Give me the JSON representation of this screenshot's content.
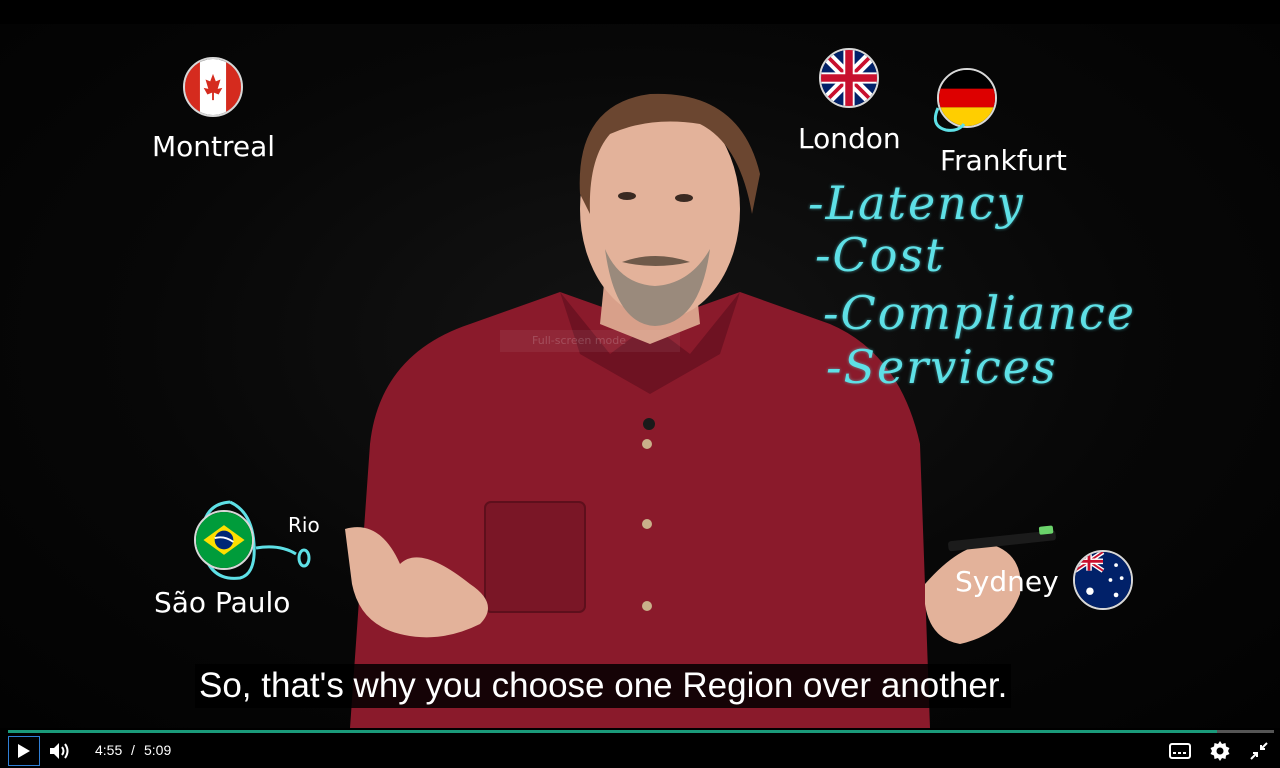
{
  "cities": {
    "montreal": "Montreal",
    "london": "London",
    "frankfurt": "Frankfurt",
    "sao_paulo": "São Paulo",
    "rio": "Rio",
    "sydney": "Sydney"
  },
  "whiteboard": {
    "items": [
      "-Latency",
      "-Cost",
      "-Compliance",
      "-Services"
    ]
  },
  "caption": "So, that's why you choose one Region over another.",
  "overlay_hint": "Full-screen mode",
  "player": {
    "current_time": "4:55",
    "separator": "/",
    "duration": "5:09",
    "progress_fraction": 0.955
  },
  "colors": {
    "ink": "#5ee0e6",
    "progress": "#1a9a7a",
    "shirt": "#8a1a2b"
  }
}
